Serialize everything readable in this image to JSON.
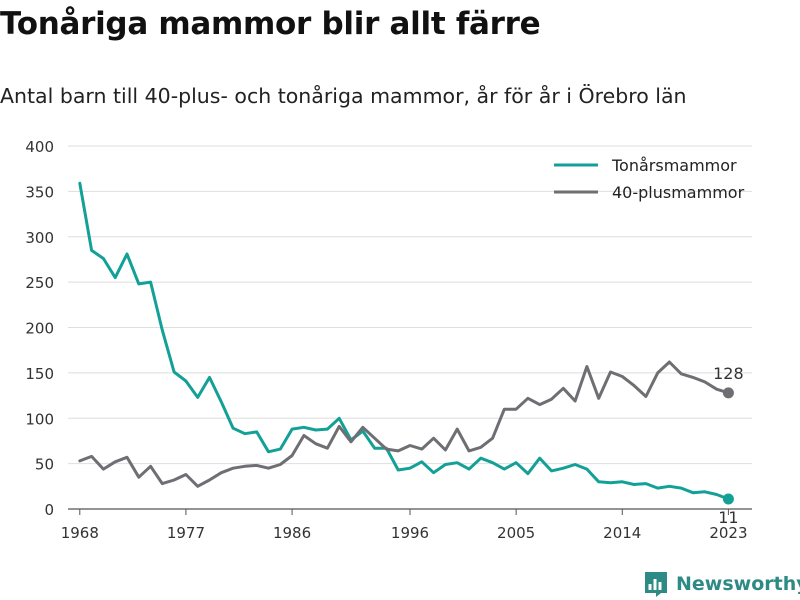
{
  "header": {
    "title": "Tonåriga mammor blir allt färre",
    "subtitle": "Antal barn till 40-plus- och tonåriga mammor, år för år i Örebro län"
  },
  "brand": {
    "name": "Newsworthy",
    "icon": "bar-chart-logo-icon",
    "color": "#2e8a84"
  },
  "chart_data": {
    "type": "line",
    "title": "Tonåriga mammor blir allt färre",
    "subtitle": "Antal barn till 40-plus- och tonåriga mammor, år för år i Örebro län",
    "xlabel": "",
    "ylabel": "",
    "x": [
      1968,
      1969,
      1970,
      1971,
      1972,
      1973,
      1974,
      1975,
      1976,
      1977,
      1978,
      1979,
      1980,
      1981,
      1982,
      1983,
      1984,
      1985,
      1986,
      1987,
      1988,
      1989,
      1990,
      1991,
      1992,
      1993,
      1994,
      1995,
      1996,
      1997,
      1998,
      1999,
      2000,
      2001,
      2002,
      2003,
      2004,
      2005,
      2006,
      2007,
      2008,
      2009,
      2010,
      2011,
      2012,
      2013,
      2014,
      2015,
      2016,
      2017,
      2018,
      2019,
      2020,
      2021,
      2022,
      2023,
      2024
    ],
    "xticks": [
      1968,
      1977,
      1986,
      1996,
      2005,
      2014,
      2023
    ],
    "yticks": [
      0,
      50,
      100,
      150,
      200,
      250,
      300,
      350,
      400
    ],
    "ylim": [
      0,
      400
    ],
    "xlim": [
      1967,
      2025
    ],
    "grid": true,
    "legend_position": "top-right",
    "series": [
      {
        "name": "Tonårsmammor",
        "color": "#13a097",
        "values": [
          359,
          285,
          276,
          255,
          281,
          248,
          250,
          197,
          151,
          141,
          123,
          145,
          118,
          89,
          83,
          85,
          63,
          66,
          88,
          90,
          87,
          88,
          100,
          76,
          86,
          67,
          67,
          43,
          45,
          52,
          40,
          49,
          51,
          44,
          56,
          51,
          44,
          51,
          39,
          56,
          42,
          45,
          49,
          44,
          30,
          29,
          30,
          27,
          28,
          23,
          25,
          23,
          18,
          19,
          16,
          11,
          null
        ],
        "end_label": "11"
      },
      {
        "name": "40-plusmammor",
        "color": "#6e6e73",
        "values": [
          53,
          58,
          44,
          52,
          57,
          35,
          47,
          28,
          32,
          38,
          25,
          32,
          40,
          45,
          47,
          48,
          45,
          49,
          59,
          81,
          72,
          67,
          91,
          74,
          90,
          78,
          66,
          64,
          70,
          66,
          78,
          65,
          88,
          64,
          68,
          78,
          110,
          110,
          122,
          115,
          121,
          133,
          119,
          157,
          122,
          151,
          146,
          136,
          124,
          150,
          162,
          149,
          145,
          140,
          132,
          128,
          null
        ],
        "end_label": "128"
      }
    ]
  }
}
